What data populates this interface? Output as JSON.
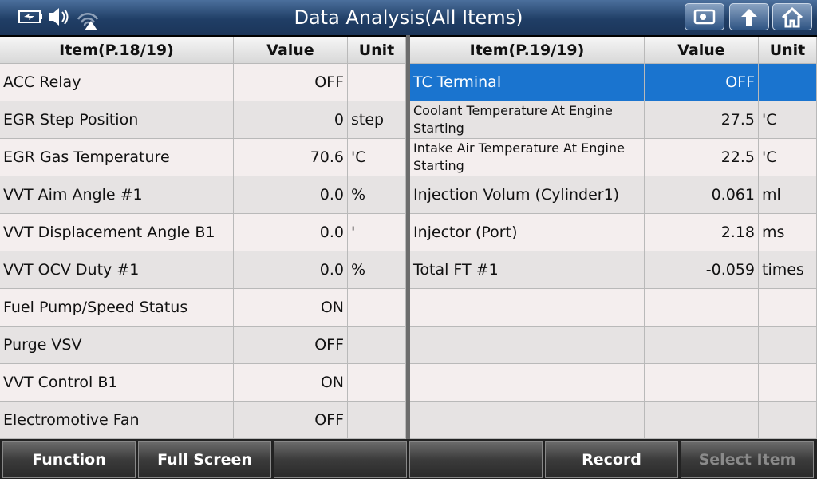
{
  "header": {
    "title": "Data Analysis(All Items)"
  },
  "left_table": {
    "columns": [
      "Item(P.18/19)",
      "Value",
      "Unit"
    ],
    "rows": [
      {
        "item": "ACC Relay",
        "value": "OFF"
      },
      {
        "item": "EGR Step Position",
        "value": "0",
        "unit": "step"
      },
      {
        "item": "EGR Gas Temperature",
        "value": "70.6",
        "unit": "'C"
      },
      {
        "item": "VVT Aim Angle #1",
        "value": "0.0",
        "unit": "%"
      },
      {
        "item": "VVT Displacement Angle B1",
        "value": "0.0",
        "unit": "'"
      },
      {
        "item": "VVT OCV Duty #1",
        "value": "0.0",
        "unit": "%"
      },
      {
        "item": "Fuel Pump/Speed Status",
        "value": "ON"
      },
      {
        "item": "Purge VSV",
        "value": "OFF"
      },
      {
        "item": "VVT Control B1",
        "value": "ON"
      },
      {
        "item": "Electromotive Fan",
        "value": "OFF"
      }
    ]
  },
  "right_table": {
    "columns": [
      "Item(P.19/19)",
      "Value",
      "Unit"
    ],
    "rows": [
      {
        "item": "TC Terminal",
        "value": "OFF"
      },
      {
        "item": "Coolant Temperature At Engine Starting",
        "value": "27.5",
        "unit": "'C"
      },
      {
        "item": "Intake Air Temperature At Engine Starting",
        "value": "22.5",
        "unit": "'C"
      },
      {
        "item": "Injection Volum (Cylinder1)",
        "value": "0.061",
        "unit": "ml"
      },
      {
        "item": "Injector (Port)",
        "value": "2.18",
        "unit": "ms"
      },
      {
        "item": "Total FT #1",
        "value": "-0.059",
        "unit": "times"
      }
    ]
  },
  "toolbar": {
    "buttons": [
      "Function",
      "Full Screen",
      "Record",
      "Select Item"
    ]
  }
}
